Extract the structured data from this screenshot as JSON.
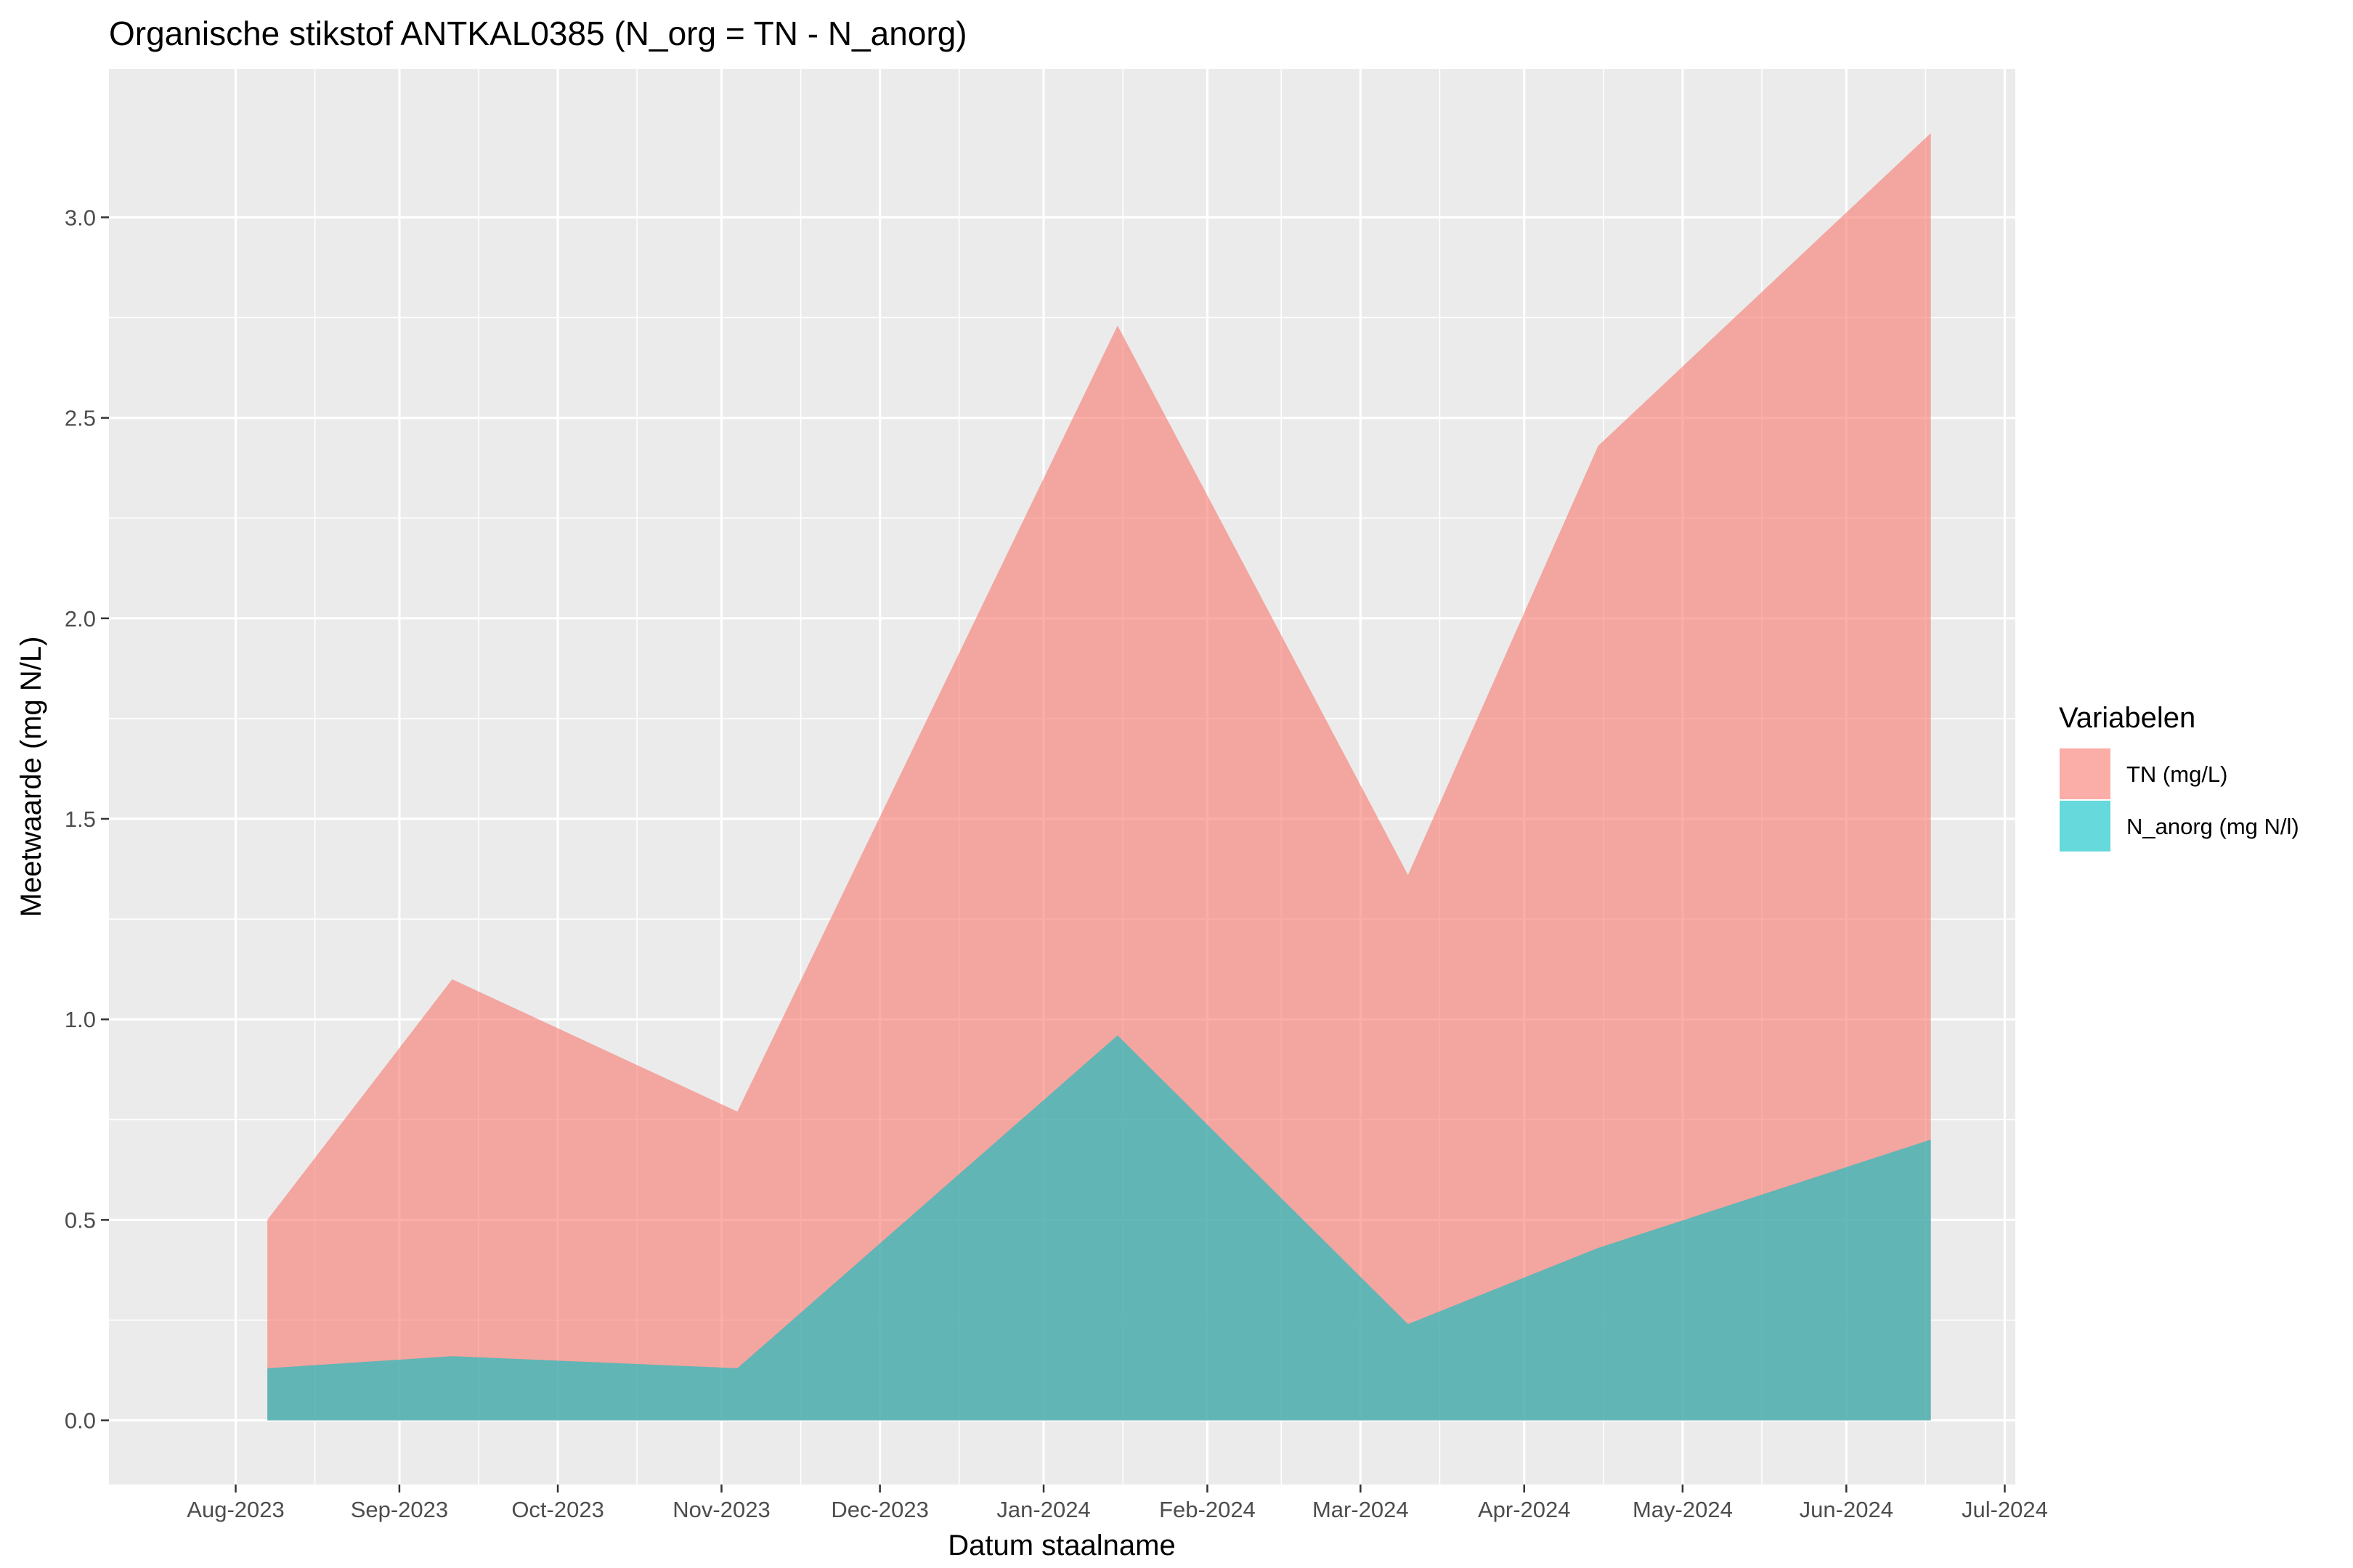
{
  "chart_data": {
    "type": "area",
    "title": "Organische stikstof ANTKAL0385 (N_org = TN - N_anorg)",
    "xlabel": "Datum staalname",
    "ylabel": "Meetwaarde (mg N/L)",
    "x_ticks": [
      "Aug-2023",
      "Sep-2023",
      "Oct-2023",
      "Nov-2023",
      "Dec-2023",
      "Jan-2024",
      "Feb-2024",
      "Mar-2024",
      "Apr-2024",
      "May-2024",
      "Jun-2024",
      "Jul-2024"
    ],
    "x_tick_dates": [
      "2023-08-01",
      "2023-09-01",
      "2023-10-01",
      "2023-11-01",
      "2023-12-01",
      "2024-01-01",
      "2024-02-01",
      "2024-03-01",
      "2024-04-01",
      "2024-05-01",
      "2024-06-01",
      "2024-07-01"
    ],
    "x_range": [
      "2023-07-08",
      "2024-07-03"
    ],
    "y_ticks": [
      "0.0",
      "0.5",
      "1.0",
      "1.5",
      "2.0",
      "2.5",
      "3.0"
    ],
    "ylim": [
      -0.16,
      3.37
    ],
    "x": [
      "2023-08-07",
      "2023-09-11",
      "2023-11-04",
      "2024-01-15",
      "2024-03-10",
      "2024-04-15",
      "2024-06-17"
    ],
    "series": [
      {
        "name": "TN (mg/L)",
        "color": "#F8766D",
        "values": [
          0.5,
          1.1,
          0.77,
          2.73,
          1.36,
          2.43,
          3.21
        ]
      },
      {
        "name": "N_anorg (mg N/l)",
        "color": "#00BFC4",
        "values": [
          0.13,
          0.16,
          0.13,
          0.96,
          0.24,
          0.43,
          0.7
        ]
      }
    ],
    "grid": true,
    "panel_background": "#EBEBEB",
    "legend": {
      "title": "Variabelen",
      "position": "right"
    }
  }
}
